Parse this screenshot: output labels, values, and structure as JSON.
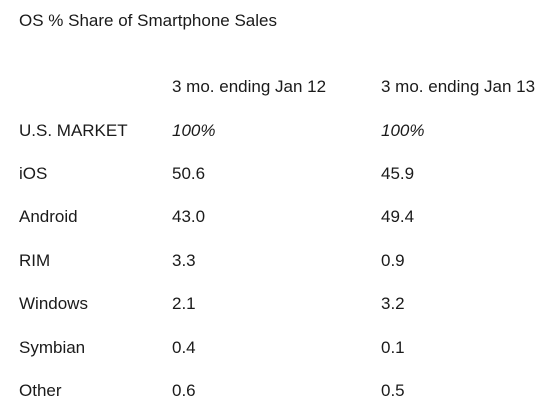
{
  "chart_data": {
    "type": "table",
    "title": "OS % Share of Smartphone Sales",
    "columns": [
      "3 mo. ending Jan 12",
      "3 mo. ending Jan 13"
    ],
    "rows": [
      {
        "label": "U.S. MARKET",
        "values": [
          "100%",
          "100%"
        ],
        "italic": true
      },
      {
        "label": "iOS",
        "values": [
          "50.6",
          "45.9"
        ]
      },
      {
        "label": "Android",
        "values": [
          "43.0",
          "49.4"
        ]
      },
      {
        "label": "RIM",
        "values": [
          "3.3",
          "0.9"
        ]
      },
      {
        "label": "Windows",
        "values": [
          "2.1",
          "3.2"
        ]
      },
      {
        "label": "Symbian",
        "values": [
          "0.4",
          "0.1"
        ]
      },
      {
        "label": "Other",
        "values": [
          "0.6",
          "0.5"
        ]
      }
    ]
  }
}
